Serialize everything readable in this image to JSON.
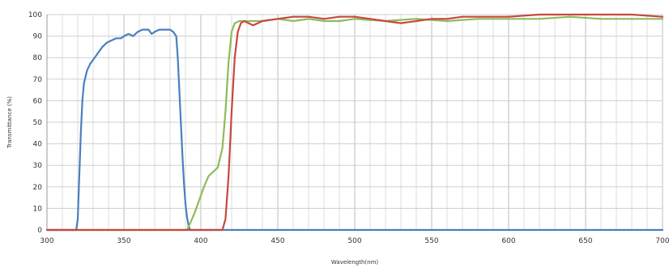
{
  "chart_data": {
    "type": "line",
    "title": "",
    "xlabel": "Wavelength(nm)",
    "ylabel": "Transmittance (%)",
    "xlim": [
      300,
      700
    ],
    "ylim": [
      0,
      100
    ],
    "x_ticks": [
      300,
      350,
      400,
      450,
      500,
      550,
      600,
      650,
      700
    ],
    "y_ticks": [
      0,
      10,
      20,
      30,
      40,
      50,
      60,
      70,
      80,
      90,
      100
    ],
    "grid": true,
    "legend": "none",
    "series": [
      {
        "color": "#4a7fbf",
        "points": [
          [
            300,
            0
          ],
          [
            319,
            0
          ],
          [
            320,
            5
          ],
          [
            321,
            25
          ],
          [
            322,
            45
          ],
          [
            323,
            60
          ],
          [
            324,
            68
          ],
          [
            326,
            74
          ],
          [
            328,
            77
          ],
          [
            330,
            79
          ],
          [
            333,
            82
          ],
          [
            336,
            85
          ],
          [
            339,
            87
          ],
          [
            342,
            88
          ],
          [
            345,
            89
          ],
          [
            348,
            89
          ],
          [
            350,
            90
          ],
          [
            353,
            91
          ],
          [
            356,
            90
          ],
          [
            359,
            92
          ],
          [
            362,
            93
          ],
          [
            366,
            93
          ],
          [
            368,
            91
          ],
          [
            370,
            92
          ],
          [
            373,
            93
          ],
          [
            376,
            93
          ],
          [
            380,
            93
          ],
          [
            382,
            92
          ],
          [
            384,
            90
          ],
          [
            385,
            80
          ],
          [
            386,
            65
          ],
          [
            387,
            50
          ],
          [
            388,
            35
          ],
          [
            389,
            22
          ],
          [
            390,
            12
          ],
          [
            391,
            6
          ],
          [
            392,
            2
          ],
          [
            393,
            0
          ],
          [
            700,
            0
          ]
        ]
      },
      {
        "color": "#8dbb5a",
        "points": [
          [
            300,
            0
          ],
          [
            391,
            0
          ],
          [
            393,
            3
          ],
          [
            396,
            8
          ],
          [
            399,
            14
          ],
          [
            402,
            20
          ],
          [
            405,
            25
          ],
          [
            408,
            27
          ],
          [
            411,
            29
          ],
          [
            414,
            38
          ],
          [
            416,
            55
          ],
          [
            418,
            78
          ],
          [
            420,
            92
          ],
          [
            422,
            96
          ],
          [
            425,
            97
          ],
          [
            430,
            97
          ],
          [
            440,
            97
          ],
          [
            450,
            98
          ],
          [
            460,
            97
          ],
          [
            470,
            98
          ],
          [
            480,
            97
          ],
          [
            490,
            97
          ],
          [
            500,
            98
          ],
          [
            520,
            97
          ],
          [
            540,
            98
          ],
          [
            560,
            97
          ],
          [
            580,
            98
          ],
          [
            600,
            98
          ],
          [
            620,
            98
          ],
          [
            640,
            99
          ],
          [
            660,
            98
          ],
          [
            680,
            98
          ],
          [
            700,
            98
          ]
        ]
      },
      {
        "color": "#c8473f",
        "points": [
          [
            300,
            0
          ],
          [
            414,
            0
          ],
          [
            416,
            5
          ],
          [
            418,
            25
          ],
          [
            420,
            55
          ],
          [
            422,
            80
          ],
          [
            424,
            92
          ],
          [
            426,
            96
          ],
          [
            428,
            97
          ],
          [
            431,
            96
          ],
          [
            434,
            95
          ],
          [
            437,
            96
          ],
          [
            440,
            97
          ],
          [
            450,
            98
          ],
          [
            460,
            99
          ],
          [
            470,
            99
          ],
          [
            480,
            98
          ],
          [
            490,
            99
          ],
          [
            500,
            99
          ],
          [
            510,
            98
          ],
          [
            520,
            97
          ],
          [
            530,
            96
          ],
          [
            540,
            97
          ],
          [
            550,
            98
          ],
          [
            560,
            98
          ],
          [
            570,
            99
          ],
          [
            580,
            99
          ],
          [
            600,
            99
          ],
          [
            620,
            100
          ],
          [
            640,
            100
          ],
          [
            660,
            100
          ],
          [
            680,
            100
          ],
          [
            700,
            99
          ]
        ]
      }
    ]
  }
}
